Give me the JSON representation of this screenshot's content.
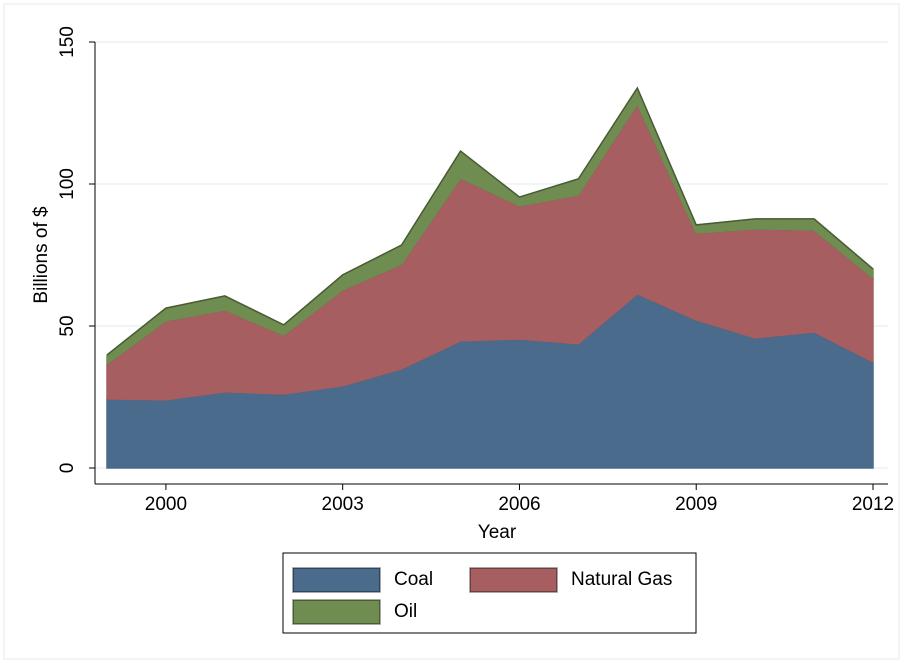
{
  "chart_data": {
    "type": "stacked-area",
    "x_label": "Year",
    "y_label": "Billions of $",
    "x": [
      1999,
      2000,
      2001,
      2002,
      2003,
      2004,
      2005,
      2006,
      2007,
      2008,
      2009,
      2010,
      2011,
      2012
    ],
    "series": [
      {
        "name": "Coal",
        "color": "#4a6b8c",
        "values": [
          24.3,
          24.0,
          26.8,
          26.0,
          28.9,
          34.9,
          44.7,
          45.4,
          43.7,
          61.3,
          52.1,
          45.8,
          47.9,
          37.3
        ]
      },
      {
        "name": "Natural Gas",
        "color": "#a65e60",
        "values": [
          12.3,
          27.8,
          28.8,
          20.8,
          33.8,
          36.9,
          57.4,
          46.9,
          52.4,
          66.9,
          30.6,
          38.4,
          35.9,
          29.6
        ]
      },
      {
        "name": "Oil",
        "color": "#6f8d50",
        "values": [
          3.2,
          4.5,
          5.0,
          3.6,
          5.3,
          6.7,
          9.5,
          3.1,
          5.7,
          5.6,
          2.9,
          3.5,
          3.9,
          3.2
        ]
      }
    ],
    "xlim": [
      1999,
      2012
    ],
    "xticks": [
      2000,
      2003,
      2006,
      2009,
      2012
    ],
    "ylim": [
      0,
      150
    ],
    "yticks": [
      0,
      50,
      100,
      150
    ],
    "grid": true
  }
}
